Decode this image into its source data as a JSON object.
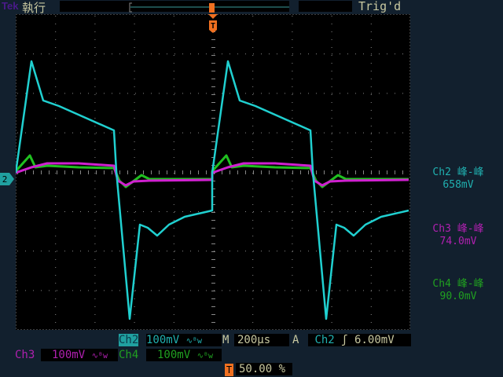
{
  "header": {
    "brand": "Tek",
    "mode": "執行",
    "trigger_status": "Trig'd"
  },
  "colors": {
    "ch2": "#20d0d0",
    "ch3": "#d020d0",
    "ch4": "#20c020",
    "trigger": "#f07020",
    "text": "#c8c8a0"
  },
  "channel_marker": "2",
  "trigger_marker": "T",
  "measurements": [
    {
      "channel": "Ch2 峰-峰",
      "value": "658mV"
    },
    {
      "channel": "Ch3 峰-峰",
      "value": "74.0mV"
    },
    {
      "channel": "Ch4 峰-峰",
      "value": "90.0mV"
    }
  ],
  "footer": {
    "ch2_label": "Ch2",
    "ch2_scale": "100mV",
    "bw_icon": "∿ᴮw",
    "timebase_label": "M",
    "timebase": "200µs",
    "trigger_label": "A",
    "trigger_source": "Ch2",
    "trigger_slope": "ʃ",
    "trigger_level": "6.00mV",
    "ch3_label": "Ch3",
    "ch3_scale": "100mV",
    "ch4_label": "Ch4",
    "ch4_scale": "100mV",
    "trigger_pos_icon": "T",
    "trigger_position": "50.00 %"
  }
}
